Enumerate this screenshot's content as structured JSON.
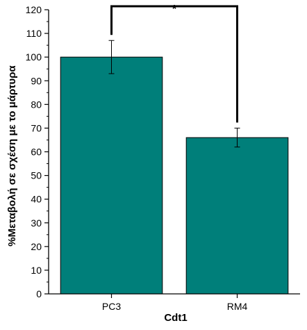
{
  "chart_data": {
    "type": "bar",
    "categories": [
      "PC3",
      "RM4"
    ],
    "values": [
      100,
      66
    ],
    "errors": [
      7,
      4
    ],
    "xlabel": "Cdt1",
    "ylabel": "%Μεταβολή σε σχέση με το μάρτυρα",
    "ylim": [
      0,
      120
    ],
    "yticks": [
      0,
      10,
      20,
      30,
      40,
      50,
      60,
      70,
      80,
      90,
      100,
      110,
      120
    ],
    "bar_color": "#007f7a",
    "significance": {
      "label": "*",
      "between": [
        "PC3",
        "RM4"
      ]
    },
    "grid": false
  }
}
